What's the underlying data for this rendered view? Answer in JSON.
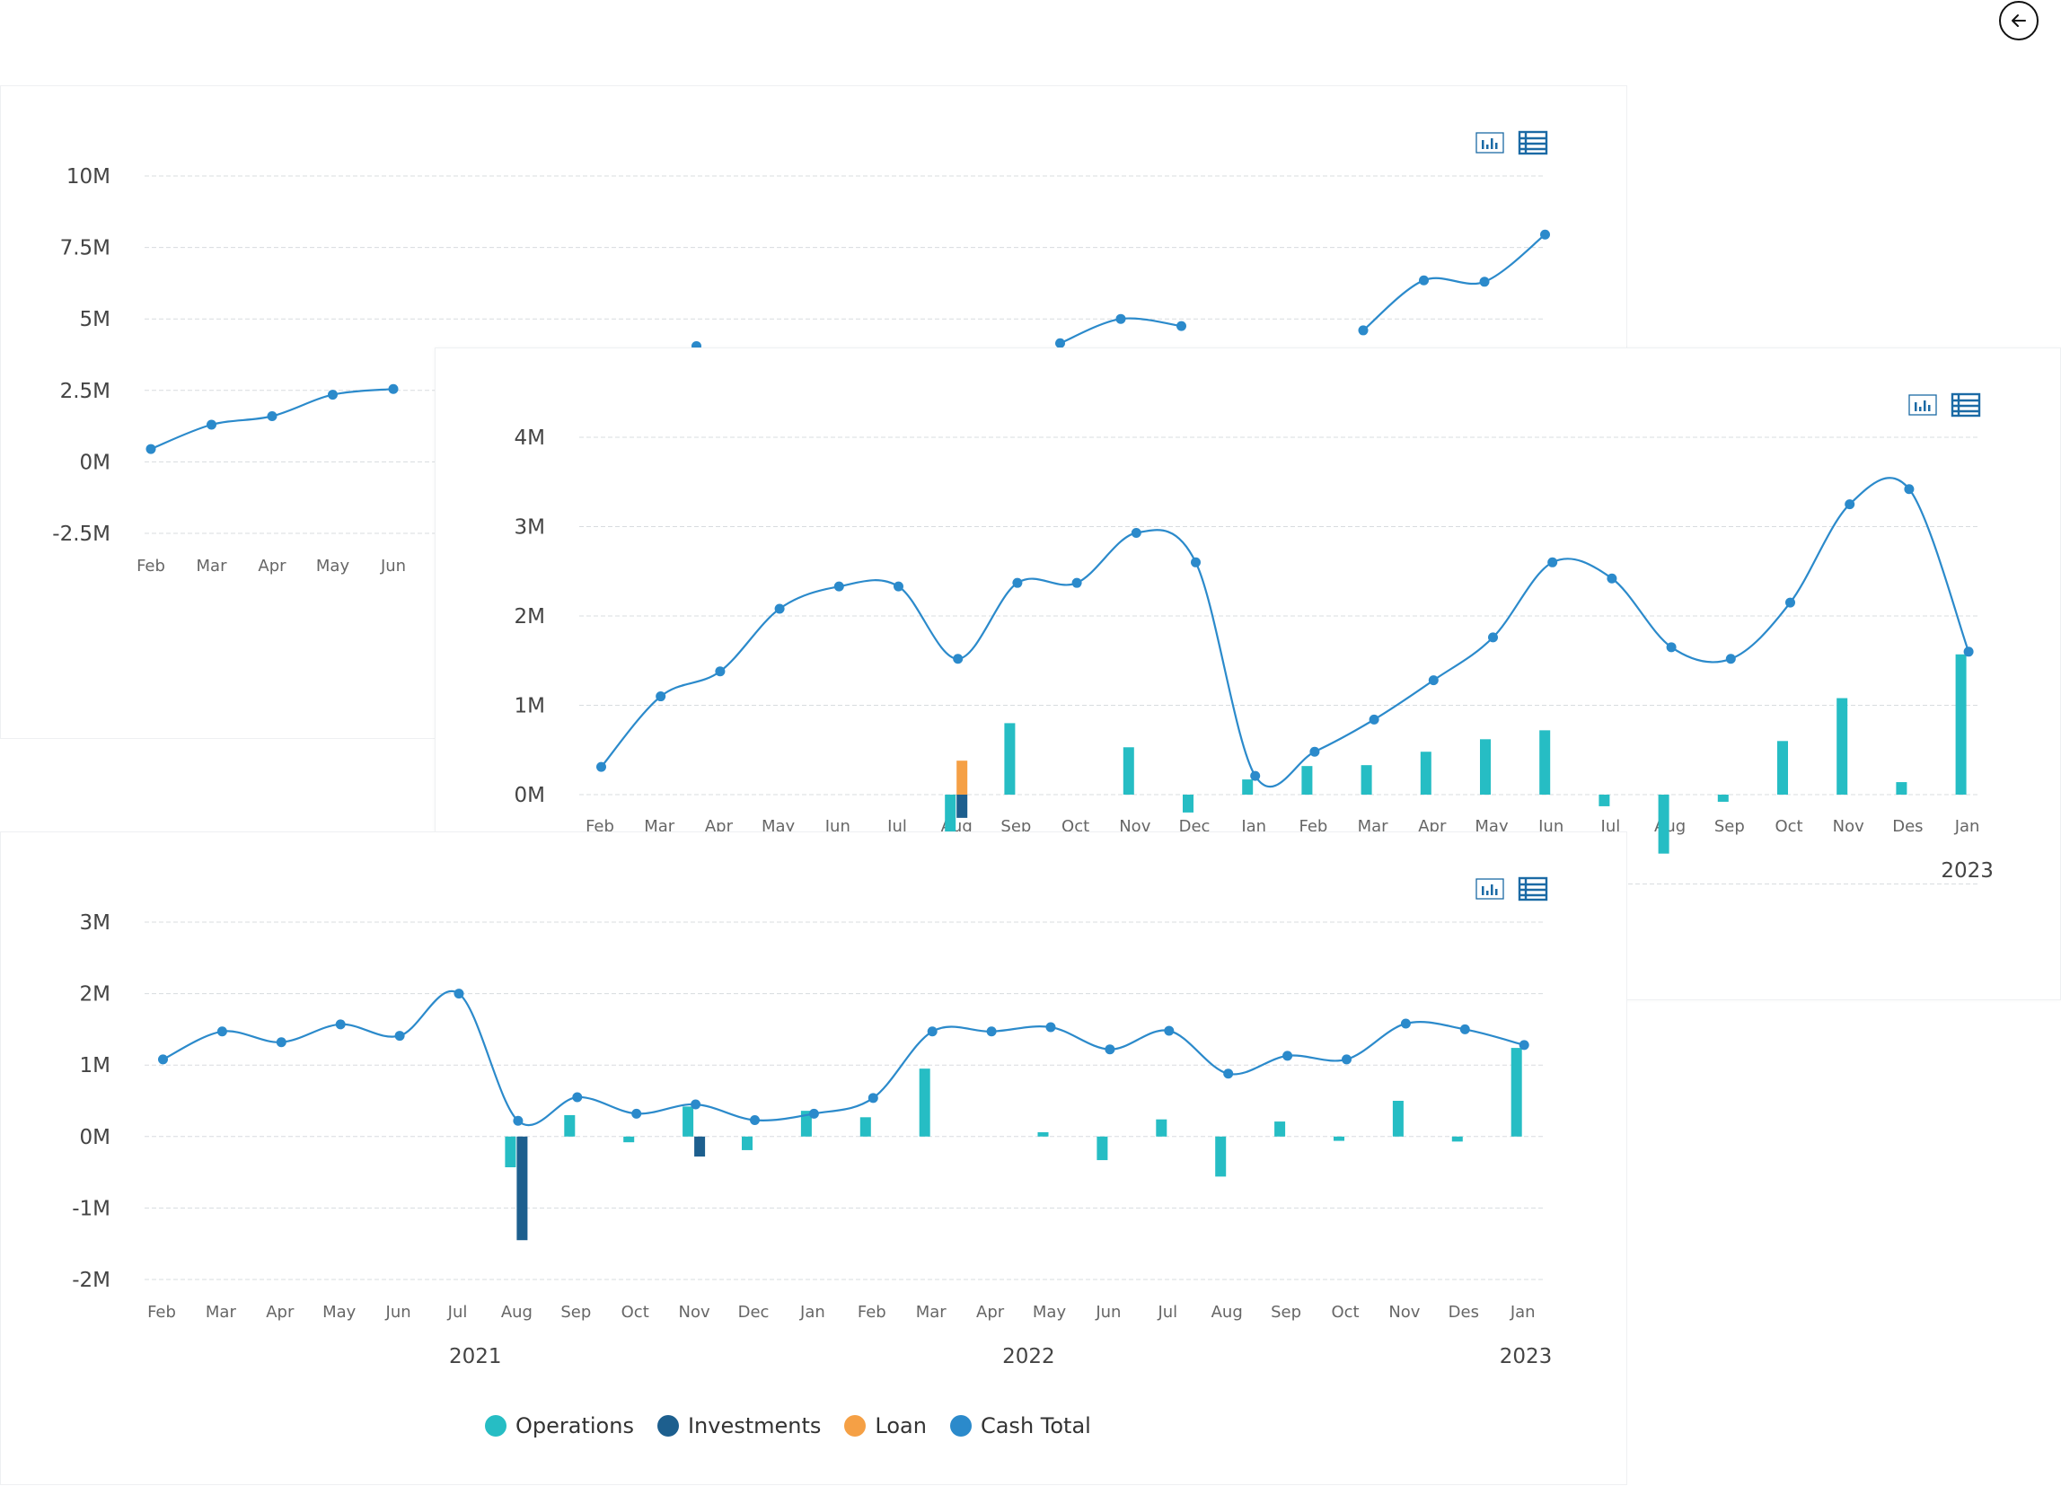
{
  "colors": {
    "operations": "#26bdc4",
    "investments": "#1d5f8e",
    "loan": "#f5a045",
    "cash_total": "#2b8acb",
    "grid": "#d8dcdf",
    "tool_icon": "#1b6aa5"
  },
  "icons": {
    "back": "arrow-left-circle-icon",
    "chart_view": "bar-chart-icon",
    "table_view": "table-grid-icon"
  },
  "legend": [
    {
      "label": "Operations",
      "color": "#26bdc4"
    },
    {
      "label": "Investments",
      "color": "#1d5f8e"
    },
    {
      "label": "Loan",
      "color": "#f5a045"
    },
    {
      "label": "Cash Total",
      "color": "#2b8acb"
    }
  ],
  "chart_data": [
    {
      "type": "line",
      "ylim": [
        -2.5,
        10
      ],
      "yticks": [
        "10M",
        "7.5M",
        "5M",
        "2.5M",
        "0M",
        "-2.5M"
      ],
      "ytick_values": [
        10,
        7.5,
        5,
        2.5,
        0,
        -2.5
      ],
      "categories": [
        "Feb",
        "Mar",
        "Apr",
        "May",
        "Jun"
      ],
      "grid": true,
      "series": [
        {
          "role": "cash_total",
          "points": [
            {
              "i": 0,
              "y": 0.45
            },
            {
              "i": 1,
              "y": 1.3
            },
            {
              "i": 2,
              "y": 1.6
            },
            {
              "i": 3,
              "y": 2.35
            },
            {
              "i": 4,
              "y": 2.55
            },
            {
              "i": 9,
              "y": 4.05
            },
            {
              "i": 15,
              "y": 4.15
            },
            {
              "i": 16,
              "y": 5.0
            },
            {
              "i": 17,
              "y": 4.75
            },
            {
              "i": 20,
              "y": 4.6
            },
            {
              "i": 21,
              "y": 6.35
            },
            {
              "i": 22,
              "y": 6.3
            },
            {
              "i": 23,
              "y": 7.95
            }
          ]
        }
      ]
    },
    {
      "type": "bar+line",
      "ylim": [
        -1,
        4
      ],
      "yticks": [
        "4M",
        "3M",
        "2M",
        "1M",
        "0M"
      ],
      "ytick_values": [
        4,
        3,
        2,
        1,
        0
      ],
      "categories": [
        "Feb",
        "Mar",
        "Apr",
        "May",
        "Jun",
        "Jul",
        "Aug",
        "Sep",
        "Oct",
        "Nov",
        "Dec",
        "Jan",
        "Feb",
        "Mar",
        "Apr",
        "May",
        "Jun",
        "Jul",
        "Aug",
        "Sep",
        "Oct",
        "Nov",
        "Des",
        "Jan"
      ],
      "year_labels": [
        {
          "text": "2023",
          "at": 23
        }
      ],
      "grid": true,
      "series": [
        {
          "name": "Operations",
          "role": "operations",
          "values": [
            0,
            0,
            0,
            0,
            0,
            0,
            -0.68,
            0.8,
            0,
            0.53,
            -0.2,
            0.17,
            0.32,
            0.33,
            0.48,
            0.62,
            0.72,
            -0.13,
            -0.66,
            -0.08,
            0.6,
            1.08,
            0.14,
            1.57
          ]
        },
        {
          "name": "Investments",
          "role": "investments",
          "values": [
            0,
            0,
            0,
            0,
            0,
            0,
            -0.26,
            0,
            0,
            0,
            0,
            0,
            0,
            0,
            0,
            0,
            0,
            0,
            0,
            0,
            0,
            0,
            0,
            0
          ]
        },
        {
          "name": "Loan",
          "role": "loan",
          "values": [
            0,
            0,
            0,
            0,
            0,
            0,
            0.38,
            0,
            0,
            0,
            0,
            0,
            0,
            0,
            0,
            0,
            0,
            0,
            0,
            0,
            0,
            0,
            0,
            0
          ]
        },
        {
          "name": "Cash Total",
          "role": "cash_total",
          "values": [
            0.31,
            1.1,
            1.38,
            2.08,
            2.33,
            2.33,
            1.52,
            2.37,
            2.37,
            2.93,
            2.6,
            0.21,
            0.48,
            0.84,
            1.28,
            1.76,
            2.6,
            2.42,
            1.65,
            1.52,
            2.15,
            3.25,
            3.42,
            1.6
          ]
        }
      ]
    },
    {
      "type": "bar+line",
      "ylim": [
        -2,
        3
      ],
      "yticks": [
        "3M",
        "2M",
        "1M",
        "0M",
        "-1M",
        "-2M"
      ],
      "ytick_values": [
        3,
        2,
        1,
        0,
        -1,
        -2
      ],
      "categories": [
        "Feb",
        "Mar",
        "Apr",
        "May",
        "Jun",
        "Jul",
        "Aug",
        "Sep",
        "Oct",
        "Nov",
        "Dec",
        "Jan",
        "Feb",
        "Mar",
        "Apr",
        "May",
        "Jun",
        "Jul",
        "Aug",
        "Sep",
        "Oct",
        "Nov",
        "Des",
        "Jan"
      ],
      "year_labels": [
        {
          "text": "2021",
          "at": 5.3
        },
        {
          "text": "2022",
          "at": 14.65
        },
        {
          "text": "2023",
          "at": 23.05
        }
      ],
      "grid": true,
      "series": [
        {
          "name": "Operations",
          "role": "operations",
          "values": [
            0,
            0,
            0,
            0,
            0,
            0,
            -0.43,
            0.3,
            -0.08,
            0.42,
            -0.19,
            0.36,
            0.27,
            0.95,
            0,
            0.06,
            -0.33,
            0.24,
            -0.56,
            0.21,
            -0.06,
            0.5,
            -0.07,
            1.24
          ]
        },
        {
          "name": "Investments",
          "role": "investments",
          "values": [
            0,
            0,
            0,
            0,
            0,
            0,
            -1.45,
            0,
            0,
            -0.28,
            0,
            0,
            0,
            0,
            0,
            0,
            0,
            0,
            0,
            0,
            0,
            0,
            0,
            0
          ]
        },
        {
          "name": "Loan",
          "role": "loan",
          "values": [
            0,
            0,
            0,
            0,
            0,
            0,
            0,
            0,
            0,
            0,
            0,
            0,
            0,
            0,
            0,
            0,
            0,
            0,
            0,
            0,
            0,
            0,
            0,
            0
          ]
        },
        {
          "name": "Cash Total",
          "role": "cash_total",
          "values": [
            1.08,
            1.47,
            1.32,
            1.57,
            1.41,
            2.0,
            0.22,
            0.55,
            0.32,
            0.45,
            0.23,
            0.32,
            0.54,
            1.47,
            1.47,
            1.53,
            1.22,
            1.48,
            0.88,
            1.13,
            1.08,
            1.58,
            1.5,
            1.28
          ]
        }
      ]
    }
  ]
}
